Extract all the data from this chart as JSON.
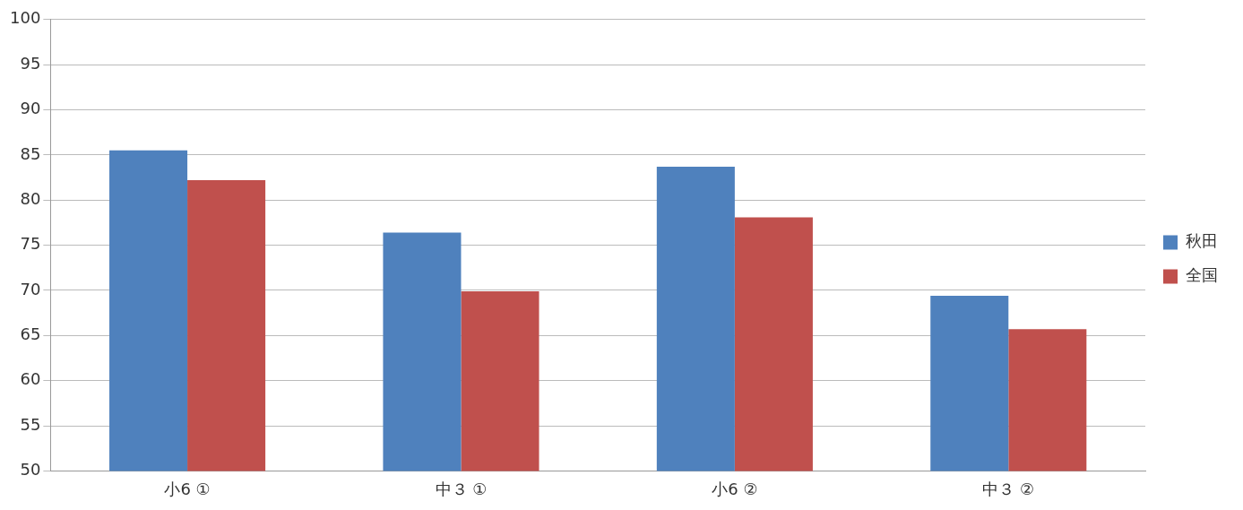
{
  "chart_data": {
    "type": "bar",
    "categories": [
      "小6 ①",
      "中３ ①",
      "小6 ②",
      "中３ ②"
    ],
    "series": [
      {
        "name": "秋田",
        "color": "#4f81bd",
        "values": [
          85.5,
          76.4,
          83.7,
          69.4
        ]
      },
      {
        "name": "全国",
        "color": "#c0504d",
        "values": [
          82.2,
          69.9,
          78.1,
          65.7
        ]
      }
    ],
    "ylim": [
      50,
      100
    ],
    "yticks": [
      50,
      55,
      60,
      65,
      70,
      75,
      80,
      85,
      90,
      95,
      100
    ],
    "grid": "y",
    "legend": "right"
  }
}
